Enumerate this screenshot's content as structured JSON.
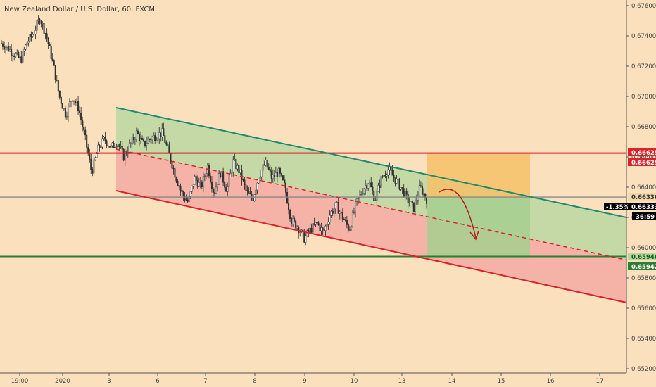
{
  "chart_data": {
    "type": "candlestick",
    "title": "New Zealand Dollar / U.S. Dollar, 60, FXCM",
    "ylim": [
      0.652,
      0.6762
    ],
    "y_ticks": [
      "0.67600",
      "0.67400",
      "0.67200",
      "0.67000",
      "0.66800",
      "0.66600",
      "0.66400",
      "0.66200",
      "0.66000",
      "0.65800",
      "0.65600",
      "0.65400",
      "0.65200"
    ],
    "x_ticks": [
      "19:00",
      "2020",
      "3",
      "6",
      "7",
      "8",
      "9",
      "10",
      "13",
      "14",
      "15",
      "16",
      "17"
    ],
    "price_path": [
      0.6735,
      0.6732,
      0.6728,
      0.6724,
      0.6736,
      0.6742,
      0.6752,
      0.674,
      0.6722,
      0.67,
      0.6688,
      0.67,
      0.6692,
      0.6672,
      0.665,
      0.6665,
      0.6672,
      0.6666,
      0.667,
      0.666,
      0.6668,
      0.6676,
      0.6668,
      0.6672,
      0.6674,
      0.6676,
      0.6662,
      0.6648,
      0.6636,
      0.663,
      0.6646,
      0.664,
      0.6654,
      0.6636,
      0.665,
      0.6638,
      0.6657,
      0.665,
      0.6637,
      0.6632,
      0.6648,
      0.6656,
      0.6646,
      0.665,
      0.664,
      0.6618,
      0.6614,
      0.6606,
      0.6612,
      0.6616,
      0.661,
      0.6622,
      0.6628,
      0.662,
      0.6612,
      0.6628,
      0.6638,
      0.6644,
      0.6632,
      0.6646,
      0.6652,
      0.6646,
      0.664,
      0.6632,
      0.6626,
      0.664,
      0.6632
    ],
    "levels": {
      "resistance": 0.66625,
      "support": 0.65942,
      "current": 0.66333,
      "last_gray": 0.66336,
      "green_line_value": 0.65946
    },
    "colors": {
      "resistance": "#d8232a",
      "support": "#2e7d32",
      "channel_upper": "#1e8a6e",
      "channel_lower": "#d8232a",
      "up": "#ffffff",
      "down": "#333333",
      "current_badge": "#000000",
      "green_zone": "#b7d7a0",
      "red_zone": "#f2a8a0",
      "orange_zone": "#f5c169"
    }
  },
  "labels": {
    "title": "New Zealand Dollar / U.S. Dollar, 60, FXCM",
    "resistance_value": "0.66625",
    "resistance_value_badge": "0.66625",
    "gray_value": "0.66336",
    "current_value": "0.66333",
    "percent_change": "-1.35%",
    "countdown": "36:59",
    "green_value": "0.65946",
    "support_value": "0.65942"
  }
}
